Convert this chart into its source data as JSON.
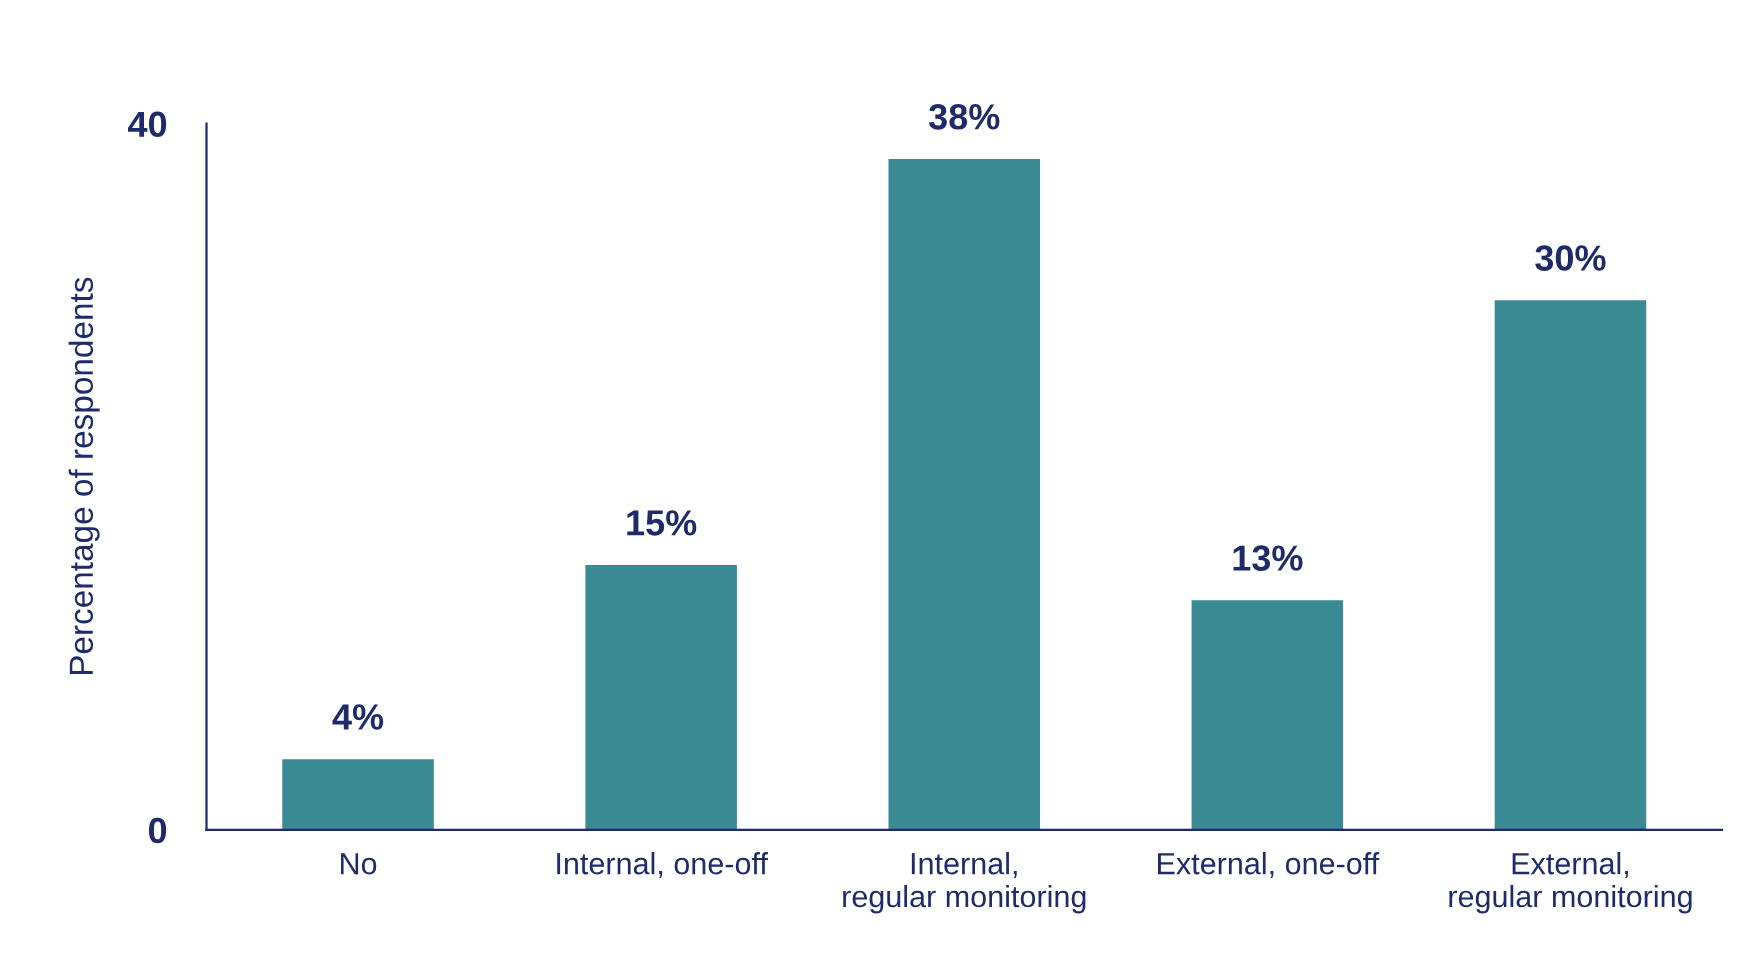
{
  "chart_data": {
    "type": "bar",
    "ylabel": "Percentage of respondents",
    "categories": [
      "No",
      "Internal, one-off",
      "Internal,\nregular monitoring",
      "External, one-off",
      "External,\nregular monitoring"
    ],
    "values": [
      4,
      15,
      38,
      13,
      30
    ],
    "color": "#3a8a93",
    "value_labels": [
      "4%",
      "15%",
      "38%",
      "13%",
      "30%"
    ],
    "ylim": [
      0,
      40
    ],
    "yticks": [
      0,
      40
    ],
    "grid": false,
    "legend": false
  }
}
